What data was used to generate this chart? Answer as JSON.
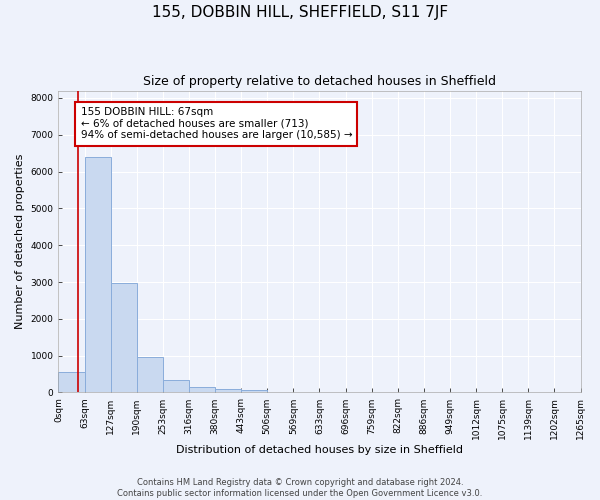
{
  "title": "155, DOBBIN HILL, SHEFFIELD, S11 7JF",
  "subtitle": "Size of property relative to detached houses in Sheffield",
  "xlabel": "Distribution of detached houses by size in Sheffield",
  "ylabel": "Number of detached properties",
  "bar_values": [
    560,
    6400,
    2960,
    960,
    340,
    160,
    100,
    70,
    0,
    0,
    0,
    0,
    0,
    0,
    0,
    0,
    0,
    0,
    0,
    0
  ],
  "bar_labels": [
    "0sqm",
    "63sqm",
    "127sqm",
    "190sqm",
    "253sqm",
    "316sqm",
    "380sqm",
    "443sqm",
    "506sqm",
    "569sqm",
    "633sqm",
    "696sqm",
    "759sqm",
    "822sqm",
    "886sqm",
    "949sqm",
    "1012sqm",
    "1075sqm",
    "1139sqm",
    "1202sqm",
    "1265sqm"
  ],
  "bar_color": "#c9d9f0",
  "bar_edge_color": "#8aaddb",
  "annotation_box_text": "155 DOBBIN HILL: 67sqm\n← 6% of detached houses are smaller (713)\n94% of semi-detached houses are larger (10,585) →",
  "vline_x": 0.75,
  "vline_color": "#cc0000",
  "annotation_box_color": "#ffffff",
  "annotation_box_edge_color": "#cc0000",
  "ylim": [
    0,
    8200
  ],
  "yticks": [
    0,
    1000,
    2000,
    3000,
    4000,
    5000,
    6000,
    7000,
    8000
  ],
  "footer_line1": "Contains HM Land Registry data © Crown copyright and database right 2024.",
  "footer_line2": "Contains public sector information licensed under the Open Government Licence v3.0.",
  "background_color": "#eef2fb",
  "grid_color": "#ffffff",
  "title_fontsize": 11,
  "subtitle_fontsize": 9,
  "label_fontsize": 8,
  "tick_fontsize": 6.5,
  "footer_fontsize": 6,
  "annotation_fontsize": 7.5
}
